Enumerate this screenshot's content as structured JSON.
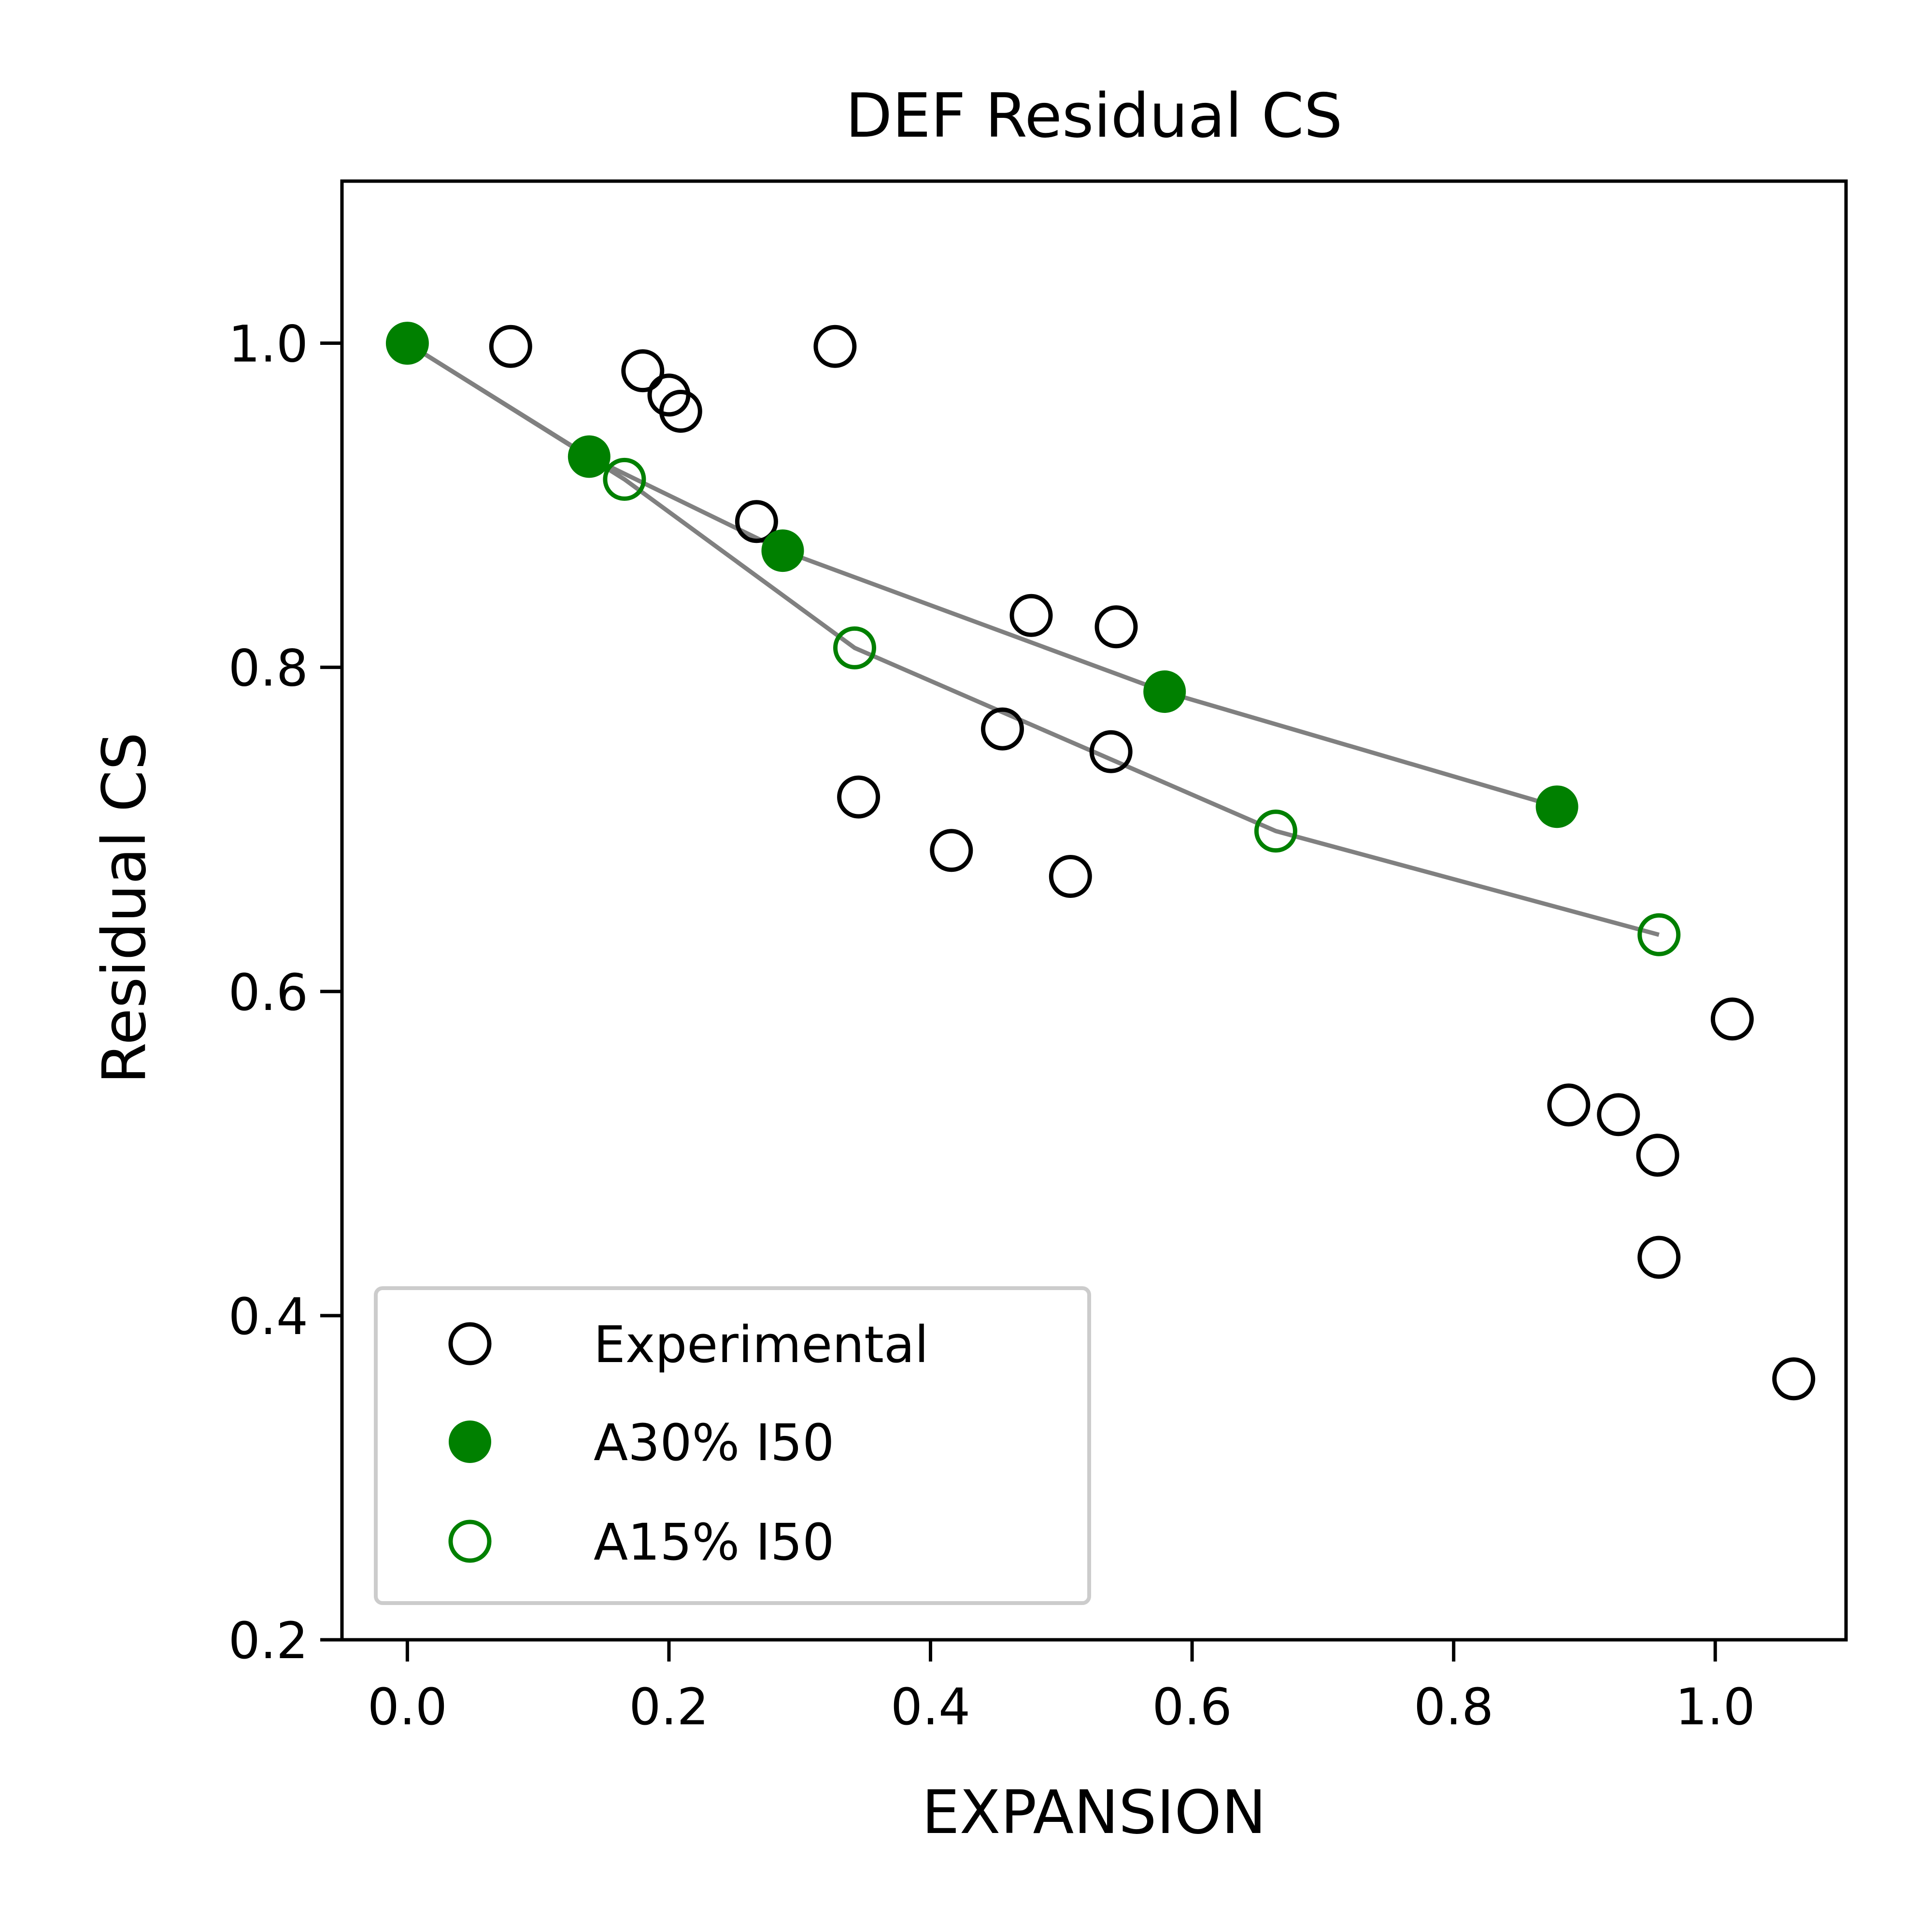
{
  "chart_data": {
    "type": "scatter",
    "title": "DEF Residual CS",
    "xlabel": "EXPANSION",
    "ylabel": "Residual CS",
    "xlim": [
      -0.05,
      1.1
    ],
    "ylim": [
      0.2,
      1.1
    ],
    "xticks": [
      0.0,
      0.2,
      0.4,
      0.6,
      0.8,
      1.0
    ],
    "xtick_labels": [
      "0.0",
      "0.2",
      "0.4",
      "0.6",
      "0.8",
      "1.0"
    ],
    "yticks": [
      0.2,
      0.4,
      0.6,
      0.8,
      1.0
    ],
    "ytick_labels": [
      "0.2",
      "0.4",
      "0.6",
      "0.8",
      "1.0"
    ],
    "grid": false,
    "legend_position": "lower-left",
    "series": [
      {
        "name": "Experimental",
        "marker": "open-circle",
        "color": "#000000",
        "line": false,
        "x": [
          0.079,
          0.18,
          0.2,
          0.209,
          0.267,
          0.327,
          0.345,
          0.416,
          0.455,
          0.477,
          0.507,
          0.538,
          0.542,
          0.888,
          0.926,
          0.956,
          0.957,
          1.013,
          1.06
        ],
        "y": [
          0.998,
          0.983,
          0.968,
          0.958,
          0.89,
          0.998,
          0.72,
          0.687,
          0.762,
          0.832,
          0.671,
          0.748,
          0.825,
          0.53,
          0.524,
          0.499,
          0.436,
          0.583,
          0.361
        ]
      },
      {
        "name": "A30% I50",
        "marker": "filled-circle",
        "color": "#008000",
        "line": true,
        "line_color": "#808080",
        "x": [
          0.0,
          0.139,
          0.287,
          0.579,
          0.879
        ],
        "y": [
          1.0,
          0.93,
          0.872,
          0.785,
          0.714
        ]
      },
      {
        "name": "A15% I50",
        "marker": "open-circle",
        "color": "#008000",
        "line": true,
        "line_color": "#808080",
        "x": [
          0.0,
          0.166,
          0.342,
          0.664,
          0.957
        ],
        "y": [
          1.0,
          0.916,
          0.812,
          0.699,
          0.635
        ]
      }
    ]
  }
}
